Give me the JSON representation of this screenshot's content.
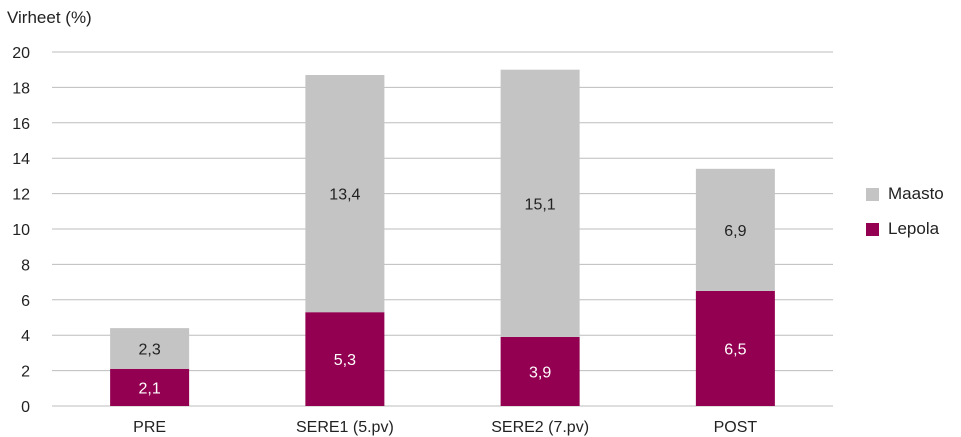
{
  "chart_data": {
    "type": "bar",
    "stacked": true,
    "ylabel": "Virheet  (%)",
    "ylim": [
      0,
      20
    ],
    "yticks": [
      0,
      2,
      4,
      6,
      8,
      10,
      12,
      14,
      16,
      18,
      20
    ],
    "grid": true,
    "legend_position": "right",
    "categories": [
      "PRE",
      "SERE1 (5.pv)",
      "SERE2 (7.pv)",
      "POST"
    ],
    "series": [
      {
        "name": "Lepola",
        "values": [
          2.1,
          5.3,
          3.9,
          6.5
        ],
        "labels": [
          "2,1",
          "5,3",
          "3,9",
          "6,5"
        ],
        "color": "#930051",
        "label_color": "#ffffff"
      },
      {
        "name": "Maasto",
        "values": [
          2.3,
          13.4,
          15.1,
          6.9
        ],
        "labels": [
          "2,3",
          "13,4",
          "15,1",
          "6,9"
        ],
        "color": "#c4c4c4",
        "label_color": "#222222"
      }
    ],
    "legend_order": [
      "Maasto",
      "Lepola"
    ]
  }
}
